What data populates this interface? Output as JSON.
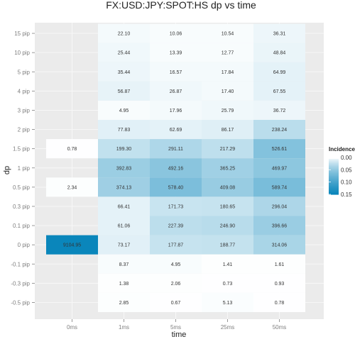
{
  "chart_data": {
    "type": "heatmap",
    "title": "FX:USD:JPY:SPOT:HS dp vs time",
    "xlabel": "time",
    "ylabel": "dp",
    "x_categories": [
      "0ms",
      "1ms",
      "5ms",
      "25ms",
      "50ms"
    ],
    "y_categories": [
      "15 pip",
      "10 pip",
      "5 pip",
      "4 pip",
      "3 pip",
      "2 pip",
      "1.5 pip",
      "1 pip",
      "0.5 pip",
      "0.3 pip",
      "0.1 pip",
      "0 pip",
      "-0.1 pip",
      "-0.3 pip",
      "-0.5 pip"
    ],
    "labels": [
      [
        null,
        "22.10",
        "10.06",
        "10.54",
        "36.31"
      ],
      [
        null,
        "25.44",
        "13.39",
        "12.77",
        "48.84"
      ],
      [
        null,
        "35.44",
        "16.57",
        "17.84",
        "64.99"
      ],
      [
        null,
        "56.87",
        "26.87",
        "17.40",
        "67.55"
      ],
      [
        null,
        "4.95",
        "17.96",
        "25.79",
        "36.72"
      ],
      [
        null,
        "77.83",
        "62.69",
        "86.17",
        "238.24"
      ],
      [
        "0.78",
        "199.30",
        "291.11",
        "217.29",
        "526.61"
      ],
      [
        null,
        "392.83",
        "492.16",
        "365.25",
        "469.97"
      ],
      [
        "2.34",
        "374.13",
        "578.40",
        "409.08",
        "589.74"
      ],
      [
        null,
        "66.41",
        "171.73",
        "180.65",
        "296.04"
      ],
      [
        null,
        "61.06",
        "227.39",
        "246.90",
        "396.66"
      ],
      [
        "9104.95",
        "73.17",
        "177.87",
        "188.77",
        "314.06"
      ],
      [
        null,
        "8.37",
        "4.95",
        "1.41",
        "1.61"
      ],
      [
        null,
        "1.38",
        "2.06",
        "0.73",
        "0.93"
      ],
      [
        null,
        "2.85",
        "0.67",
        "5.13",
        "0.78"
      ]
    ],
    "incidence": [
      [
        null,
        0.002,
        0.001,
        0.001,
        0.004
      ],
      [
        null,
        0.003,
        0.001,
        0.001,
        0.005
      ],
      [
        null,
        0.004,
        0.002,
        0.002,
        0.007
      ],
      [
        null,
        0.006,
        0.003,
        0.002,
        0.007
      ],
      [
        null,
        0.001,
        0.002,
        0.003,
        0.004
      ],
      [
        null,
        0.008,
        0.007,
        0.009,
        0.026
      ],
      [
        0.0001,
        0.022,
        0.032,
        0.024,
        0.058
      ],
      [
        null,
        0.043,
        0.054,
        0.04,
        0.052
      ],
      [
        0.0003,
        0.041,
        0.063,
        0.045,
        0.065
      ],
      [
        null,
        0.007,
        0.019,
        0.02,
        0.033
      ],
      [
        null,
        0.007,
        0.025,
        0.027,
        0.044
      ],
      [
        0.15,
        0.008,
        0.02,
        0.021,
        0.035
      ],
      [
        null,
        0.001,
        0.001,
        0.0002,
        0.0002
      ],
      [
        null,
        0.0002,
        0.0002,
        0.0001,
        0.0001
      ],
      [
        null,
        0.0003,
        0.0001,
        0.0006,
        0.0001
      ]
    ],
    "legend": {
      "title": "Incidence",
      "ticks": [
        "0.00",
        "0.05",
        "0.10",
        "0.15"
      ],
      "tick_values": [
        0,
        0.05,
        0.1,
        0.15
      ],
      "placement": "right"
    },
    "color_scale": {
      "low": "#ffffff",
      "high": "#0a86bb",
      "max": 0.15
    },
    "grid": true
  },
  "colors": {
    "panel_background": "#ebebeb",
    "outer_background": "#ffffff"
  }
}
